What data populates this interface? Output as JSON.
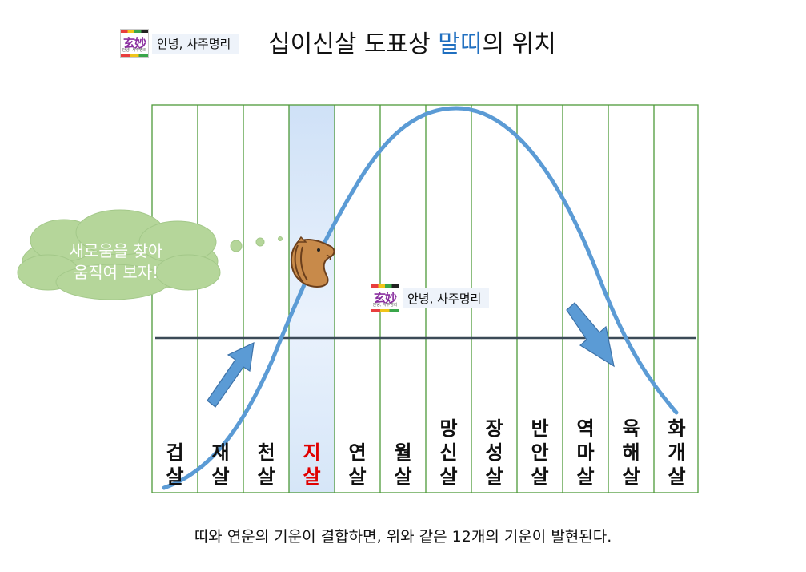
{
  "logo": {
    "glyph": "玄妙",
    "tiny": "안녕, 사주명리",
    "label": "안녕, 사주명리"
  },
  "title": {
    "before": "십이신살 도표상 ",
    "highlight": "말띠",
    "after": "의 위치"
  },
  "bubble": {
    "line1": "새로움을 찾아",
    "line2": "움직여 보자!"
  },
  "caption": "띠와 연운의 기운이 결합하면, 위와 같은 12개의 기운이 발현된다.",
  "columns": [
    "겁살",
    "재살",
    "천살",
    "지살",
    "연살",
    "월살",
    "망신살",
    "장성살",
    "반안살",
    "역마살",
    "육해살",
    "화개살"
  ],
  "highlight_column": "지살",
  "colors": {
    "grid": "#4f9a3a",
    "curve": "#5b9bd5",
    "arrow": "#5b9bd5",
    "arrow_border": "#3d72a8",
    "baseline": "#3b4a57",
    "highlight": "#d6e6f8",
    "bubble": "#b5d69a",
    "title_highlight": "#1f6fc0",
    "red": "#e00000"
  }
}
